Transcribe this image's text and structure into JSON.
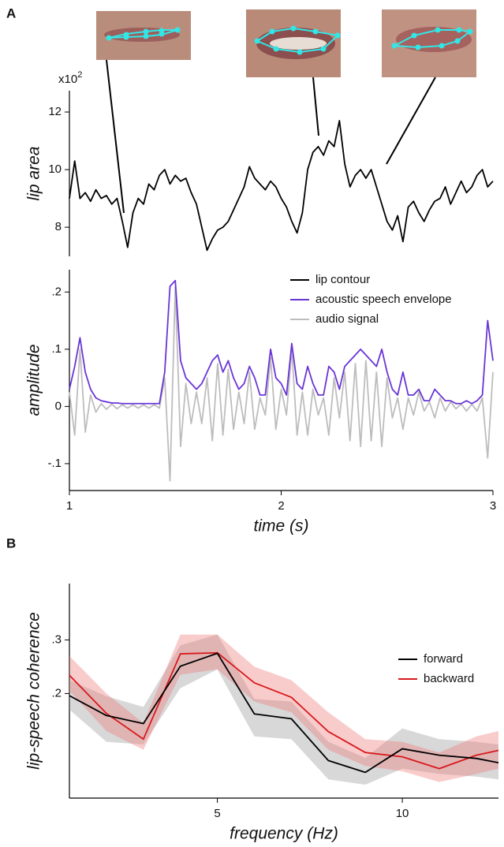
{
  "panels": [
    "A",
    "B"
  ],
  "chart_data": [
    {
      "type": "line",
      "ylabel": "lip area",
      "y_scale_label": "x10",
      "y_scale_exponent": "2",
      "xlim": [
        1,
        3
      ],
      "ylim": [
        6.99,
        12.74
      ],
      "yticks": [
        8,
        10,
        12
      ],
      "x": [
        1,
        1.025,
        1.05,
        1.075,
        1.1,
        1.125,
        1.15,
        1.175,
        1.2,
        1.225,
        1.25,
        1.275,
        1.3,
        1.325,
        1.35,
        1.375,
        1.4,
        1.425,
        1.45,
        1.475,
        1.5,
        1.525,
        1.55,
        1.575,
        1.6,
        1.625,
        1.65,
        1.675,
        1.7,
        1.725,
        1.75,
        1.775,
        1.8,
        1.825,
        1.85,
        1.875,
        1.9,
        1.925,
        1.95,
        1.975,
        2,
        2.025,
        2.05,
        2.075,
        2.1,
        2.125,
        2.15,
        2.175,
        2.2,
        2.225,
        2.25,
        2.275,
        2.3,
        2.325,
        2.35,
        2.375,
        2.4,
        2.425,
        2.45,
        2.475,
        2.5,
        2.525,
        2.55,
        2.575,
        2.6,
        2.625,
        2.65,
        2.675,
        2.7,
        2.725,
        2.75,
        2.775,
        2.8,
        2.825,
        2.85,
        2.875,
        2.9,
        2.925,
        2.95,
        2.975,
        3
      ],
      "series": [
        {
          "name": "lip contour",
          "color": "#000000",
          "values": [
            9.0,
            10.3,
            9.0,
            9.2,
            8.9,
            9.3,
            9.0,
            9.1,
            8.8,
            9.0,
            8.2,
            7.3,
            8.5,
            9.0,
            8.8,
            9.5,
            9.3,
            9.8,
            10.0,
            9.5,
            9.8,
            9.6,
            9.7,
            9.2,
            8.8,
            8.0,
            7.2,
            7.6,
            7.9,
            8.0,
            8.2,
            8.6,
            9.0,
            9.4,
            10.1,
            9.7,
            9.5,
            9.3,
            9.6,
            9.4,
            9.0,
            8.7,
            8.2,
            7.8,
            8.5,
            10.0,
            10.6,
            10.8,
            10.5,
            11.0,
            10.8,
            11.7,
            10.2,
            9.4,
            9.8,
            10.0,
            9.7,
            10.0,
            9.4,
            8.8,
            8.2,
            7.9,
            8.4,
            7.5,
            8.7,
            8.9,
            8.5,
            8.2,
            8.6,
            8.9,
            9.0,
            9.4,
            8.8,
            9.2,
            9.6,
            9.2,
            9.4,
            9.8,
            10.0,
            9.4,
            9.6
          ]
        }
      ]
    },
    {
      "type": "line",
      "ylabel": "amplitude",
      "xlabel": "time (s)",
      "legend": "upper right",
      "xlim": [
        1,
        3
      ],
      "xticks": [
        1,
        2,
        3
      ],
      "ylim": [
        -0.147,
        0.239
      ],
      "yticks": [
        {
          "value": 0.2,
          "label": ".2"
        },
        {
          "value": 0.1,
          "label": ".1"
        },
        0,
        {
          "value": -0.1,
          "label": "-.1"
        }
      ],
      "x": [
        1,
        1.025,
        1.05,
        1.075,
        1.1,
        1.125,
        1.15,
        1.175,
        1.2,
        1.225,
        1.25,
        1.275,
        1.3,
        1.325,
        1.35,
        1.375,
        1.4,
        1.425,
        1.45,
        1.475,
        1.5,
        1.525,
        1.55,
        1.575,
        1.6,
        1.625,
        1.65,
        1.675,
        1.7,
        1.725,
        1.75,
        1.775,
        1.8,
        1.825,
        1.85,
        1.875,
        1.9,
        1.925,
        1.95,
        1.975,
        2,
        2.025,
        2.05,
        2.075,
        2.1,
        2.125,
        2.15,
        2.175,
        2.2,
        2.225,
        2.25,
        2.275,
        2.3,
        2.325,
        2.35,
        2.375,
        2.4,
        2.425,
        2.45,
        2.475,
        2.5,
        2.525,
        2.55,
        2.575,
        2.6,
        2.625,
        2.65,
        2.675,
        2.7,
        2.725,
        2.75,
        2.775,
        2.8,
        2.825,
        2.85,
        2.875,
        2.9,
        2.925,
        2.95,
        2.975,
        3
      ],
      "series": [
        {
          "name": "acoustic speech envelope",
          "color": "#6a35d6",
          "values": [
            0.03,
            0.07,
            0.12,
            0.06,
            0.03,
            0.015,
            0.01,
            0.008,
            0.006,
            0.006,
            0.005,
            0.005,
            0.005,
            0.005,
            0.005,
            0.005,
            0.005,
            0.005,
            0.06,
            0.21,
            0.22,
            0.08,
            0.05,
            0.04,
            0.03,
            0.04,
            0.06,
            0.08,
            0.09,
            0.06,
            0.08,
            0.05,
            0.03,
            0.04,
            0.07,
            0.05,
            0.02,
            0.02,
            0.1,
            0.05,
            0.04,
            0.02,
            0.11,
            0.04,
            0.03,
            0.07,
            0.04,
            0.02,
            0.02,
            0.07,
            0.06,
            0.03,
            0.07,
            0.08,
            0.09,
            0.1,
            0.09,
            0.08,
            0.07,
            0.1,
            0.06,
            0.03,
            0.02,
            0.06,
            0.02,
            0.02,
            0.03,
            0.01,
            0.01,
            0.03,
            0.02,
            0.01,
            0.01,
            0.005,
            0.005,
            0.01,
            0.005,
            0.01,
            0.02,
            0.15,
            0.08
          ]
        },
        {
          "name": "audio signal",
          "color": "#bdbdbd",
          "values": [
            0.025,
            -0.05,
            0.1,
            -0.045,
            0.02,
            -0.01,
            0.005,
            -0.005,
            0.004,
            -0.004,
            0.003,
            -0.003,
            0.003,
            -0.003,
            0.003,
            -0.003,
            0.003,
            -0.003,
            0.05,
            -0.13,
            0.21,
            -0.07,
            0.04,
            -0.03,
            0.025,
            -0.03,
            0.05,
            -0.06,
            0.075,
            -0.05,
            0.065,
            -0.04,
            0.025,
            -0.03,
            0.06,
            -0.04,
            0.015,
            -0.015,
            0.085,
            -0.04,
            0.03,
            -0.015,
            0.1,
            -0.05,
            0.025,
            -0.05,
            0.03,
            -0.015,
            0.015,
            -0.05,
            0.05,
            -0.02,
            0.06,
            -0.06,
            0.075,
            -0.07,
            0.08,
            -0.06,
            0.06,
            -0.07,
            0.05,
            -0.02,
            0.015,
            -0.04,
            0.015,
            -0.015,
            0.025,
            -0.008,
            0.008,
            -0.02,
            0.015,
            -0.008,
            0.008,
            -0.004,
            0.004,
            -0.008,
            0.004,
            -0.008,
            0.015,
            -0.09,
            0.06
          ]
        }
      ]
    },
    {
      "type": "line",
      "ylabel": "lip-speech coherence",
      "xlabel": "frequency (Hz)",
      "legend": "right",
      "xlim": [
        1,
        12.6
      ],
      "xticks": [
        5,
        10
      ],
      "ylim": [
        0.005,
        0.405
      ],
      "yticks": [
        {
          "value": 0.2,
          "label": ".2"
        },
        {
          "value": 0.3,
          "label": ".3"
        }
      ],
      "x": [
        1,
        2,
        3,
        4,
        5,
        6,
        7,
        8,
        9,
        10,
        11,
        12,
        12.6
      ],
      "series": [
        {
          "name": "forward",
          "color": "#000000",
          "band_color": "#9e9e9e",
          "values": [
            0.196,
            0.159,
            0.144,
            0.251,
            0.275,
            0.162,
            0.153,
            0.075,
            0.053,
            0.097,
            0.085,
            0.079,
            0.071
          ],
          "lower": [
            0.17,
            0.11,
            0.105,
            0.21,
            0.245,
            0.12,
            0.115,
            0.04,
            0.03,
            0.06,
            0.05,
            0.045,
            0.04
          ],
          "upper": [
            0.225,
            0.195,
            0.175,
            0.29,
            0.31,
            0.19,
            0.185,
            0.11,
            0.08,
            0.135,
            0.115,
            0.11,
            0.105
          ]
        },
        {
          "name": "backward",
          "color": "#d7191c",
          "band_color": "#f08080",
          "values": [
            0.234,
            0.163,
            0.115,
            0.274,
            0.276,
            0.22,
            0.193,
            0.129,
            0.09,
            0.082,
            0.06,
            0.085,
            0.094
          ],
          "lower": [
            0.205,
            0.13,
            0.095,
            0.235,
            0.245,
            0.185,
            0.165,
            0.095,
            0.065,
            0.055,
            0.035,
            0.05,
            0.06
          ],
          "upper": [
            0.27,
            0.2,
            0.145,
            0.31,
            0.31,
            0.25,
            0.225,
            0.165,
            0.115,
            0.11,
            0.09,
            0.12,
            0.13
          ]
        }
      ]
    }
  ]
}
